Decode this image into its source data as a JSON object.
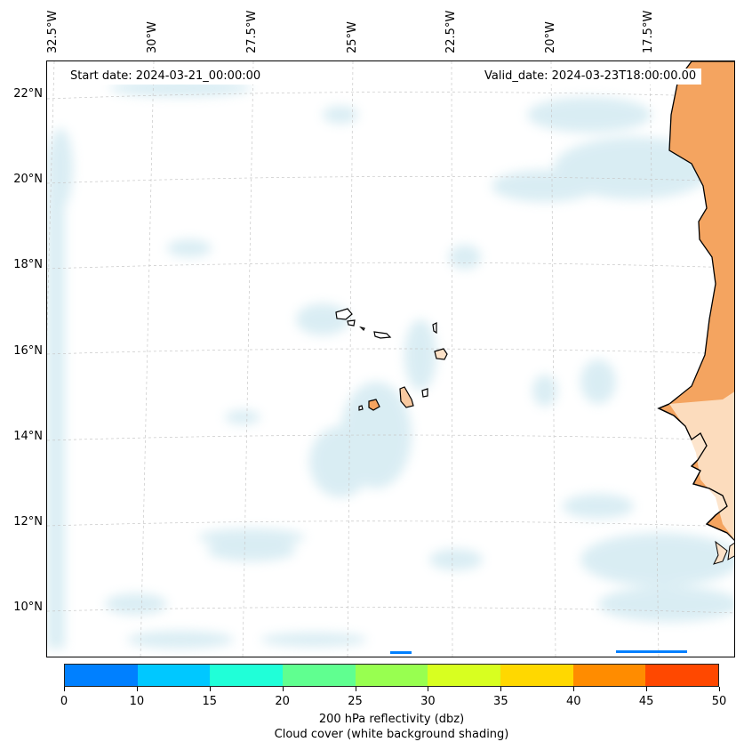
{
  "map": {
    "start_date_label": "Start date: 2024-03-21_00:00:00",
    "valid_date_label": "Valid_date: 2024-03-23T18:00:00.00",
    "longitude_labels": [
      "32.5°W",
      "30°W",
      "27.5°W",
      "25°W",
      "22.5°W",
      "20°W",
      "17.5°W"
    ],
    "latitude_labels": [
      "22°N",
      "20°N",
      "18°N",
      "16°N",
      "14°N",
      "12°N",
      "10°N"
    ],
    "land_color": "#f4a460",
    "cloud_color": "#add8e6",
    "coastline_color": "#000000",
    "gridline_style": "dashed light grey"
  },
  "colorbar": {
    "ticks": [
      "0",
      "10",
      "15",
      "20",
      "25",
      "30",
      "35",
      "40",
      "45",
      "50"
    ],
    "colors": [
      "#0080ff",
      "#00c8ff",
      "#20ffd8",
      "#60ff90",
      "#98ff50",
      "#d8ff20",
      "#ffd800",
      "#ff8c00",
      "#ff4800"
    ],
    "title_line1": "200 hPa reflectivity (dbz)",
    "title_line2": "Cloud cover (white background shading)"
  }
}
